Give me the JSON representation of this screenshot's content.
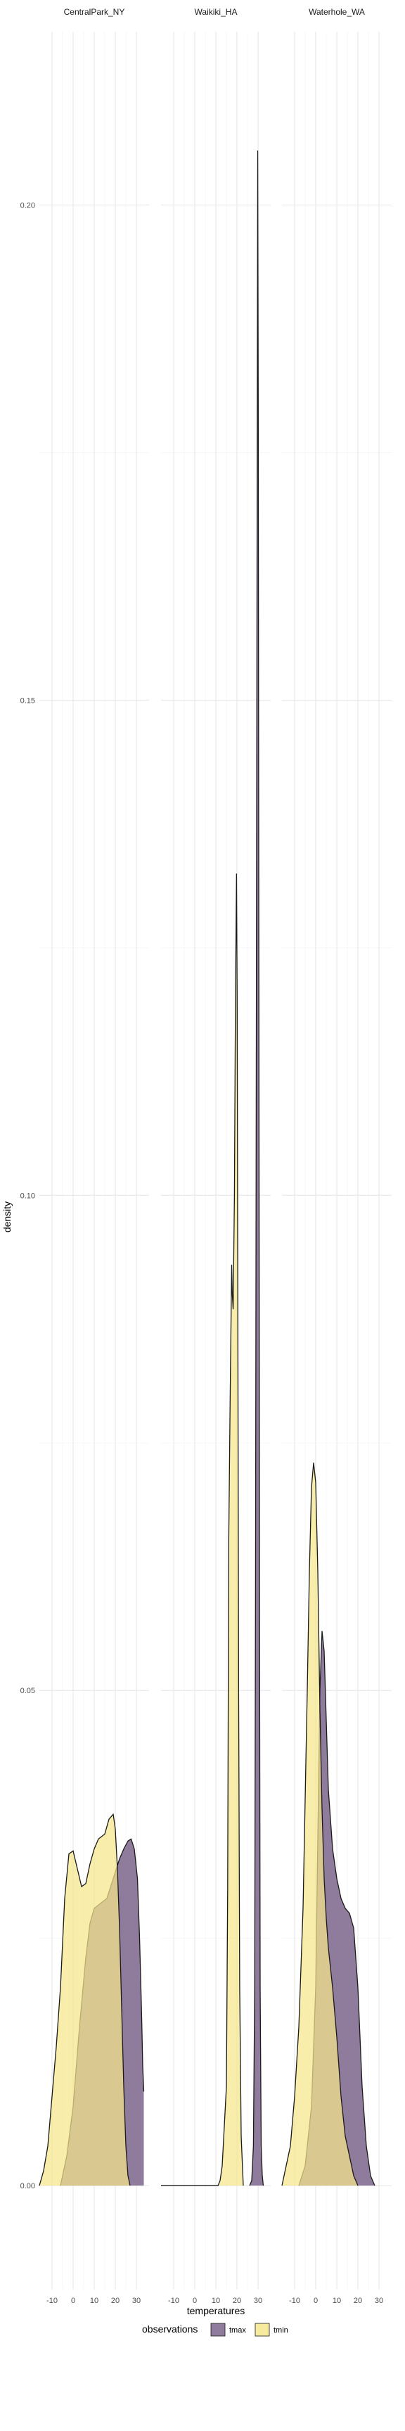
{
  "chart_data": {
    "type": "area",
    "subtype": "density-facets",
    "xlabel": "temperatures",
    "ylabel": "density",
    "xlim": [
      -16,
      36
    ],
    "ylim": [
      -0.0105,
      0.2175
    ],
    "x_ticks": [
      -10,
      0,
      10,
      20,
      30
    ],
    "y_ticks": [
      0.0,
      0.05,
      0.1,
      0.15,
      0.2
    ],
    "y_tick_labels": [
      "0.00",
      "0.05",
      "0.10",
      "0.15",
      "0.20"
    ],
    "grid": true,
    "legend": {
      "title": "observations",
      "position": "bottom",
      "entries": [
        {
          "name": "tmax",
          "color": "#8f7b9b"
        },
        {
          "name": "tmin",
          "color": "#f5e68b"
        }
      ]
    },
    "colors": {
      "tmax": "#8f7b9b",
      "tmin": "#f5e68b",
      "overlap": "#c2aa4d",
      "outline": "#1a1a1a"
    },
    "facets": [
      {
        "name": "CentralPark_NY",
        "series": [
          {
            "name": "tmax",
            "points": [
              [
                -6,
                0.0
              ],
              [
                -3,
                0.003
              ],
              [
                0,
                0.008
              ],
              [
                3,
                0.016
              ],
              [
                6,
                0.023
              ],
              [
                8,
                0.0265
              ],
              [
                10,
                0.028
              ],
              [
                13,
                0.0285
              ],
              [
                16,
                0.029
              ],
              [
                19,
                0.031
              ],
              [
                22,
                0.033
              ],
              [
                24,
                0.034
              ],
              [
                26,
                0.0348
              ],
              [
                27.5,
                0.035
              ],
              [
                29,
                0.034
              ],
              [
                30.5,
                0.031
              ],
              [
                31.5,
                0.025
              ],
              [
                32.5,
                0.017
              ],
              [
                33,
                0.012
              ],
              [
                33.5,
                0.0095
              ]
            ]
          },
          {
            "name": "tmin",
            "points": [
              [
                -16,
                0.0
              ],
              [
                -14,
                0.0015
              ],
              [
                -12,
                0.004
              ],
              [
                -10,
                0.009
              ],
              [
                -8,
                0.014
              ],
              [
                -6,
                0.02
              ],
              [
                -4,
                0.029
              ],
              [
                -2,
                0.0335
              ],
              [
                0,
                0.0338
              ],
              [
                2,
                0.032
              ],
              [
                4,
                0.0302
              ],
              [
                6,
                0.0305
              ],
              [
                8,
                0.0325
              ],
              [
                10,
                0.034
              ],
              [
                12,
                0.035
              ],
              [
                15,
                0.0355
              ],
              [
                17,
                0.037
              ],
              [
                19,
                0.0375
              ],
              [
                20,
                0.036
              ],
              [
                21,
                0.032
              ],
              [
                22,
                0.026
              ],
              [
                23,
                0.018
              ],
              [
                24,
                0.01
              ],
              [
                25,
                0.004
              ],
              [
                26,
                0.001
              ],
              [
                27,
                0.0
              ]
            ]
          }
        ]
      },
      {
        "name": "Waikiki_HA",
        "series": [
          {
            "name": "tmax",
            "points": [
              [
                26,
                0.0
              ],
              [
                27,
                0.0005
              ],
              [
                27.8,
                0.004
              ],
              [
                28.4,
                0.02
              ],
              [
                28.8,
                0.06
              ],
              [
                29.2,
                0.12
              ],
              [
                29.6,
                0.175
              ],
              [
                29.85,
                0.2055
              ],
              [
                30.1,
                0.18
              ],
              [
                30.4,
                0.12
              ],
              [
                30.7,
                0.06
              ],
              [
                31,
                0.02
              ],
              [
                31.5,
                0.004
              ],
              [
                32,
                0.001
              ],
              [
                32.5,
                0.0
              ]
            ]
          },
          {
            "name": "tmin",
            "points": [
              [
                -16,
                0.0
              ],
              [
                11,
                0.0
              ],
              [
                12,
                0.0005
              ],
              [
                13,
                0.002
              ],
              [
                14,
                0.006
              ],
              [
                15,
                0.01
              ],
              [
                15.6,
                0.03
              ],
              [
                16.1,
                0.065
              ],
              [
                16.8,
                0.08
              ],
              [
                17.5,
                0.093
              ],
              [
                17.8,
                0.09
              ],
              [
                18.2,
                0.0885
              ],
              [
                18.8,
                0.1
              ],
              [
                19.3,
                0.12
              ],
              [
                19.8,
                0.1325
              ],
              [
                20.1,
                0.12
              ],
              [
                20.4,
                0.09
              ],
              [
                20.8,
                0.05
              ],
              [
                21.3,
                0.02
              ],
              [
                22,
                0.005
              ],
              [
                23,
                0.0
              ]
            ]
          }
        ]
      },
      {
        "name": "Waterhole_WA",
        "series": [
          {
            "name": "tmax",
            "points": [
              [
                -8,
                0.0
              ],
              [
                -5,
                0.002
              ],
              [
                -2,
                0.008
              ],
              [
                0,
                0.02
              ],
              [
                1,
                0.035
              ],
              [
                2,
                0.05
              ],
              [
                3,
                0.056
              ],
              [
                4,
                0.054
              ],
              [
                5,
                0.047
              ],
              [
                6,
                0.04
              ],
              [
                8,
                0.034
              ],
              [
                10,
                0.031
              ],
              [
                12,
                0.029
              ],
              [
                14,
                0.028
              ],
              [
                16,
                0.0275
              ],
              [
                18,
                0.026
              ],
              [
                20,
                0.02
              ],
              [
                22,
                0.01
              ],
              [
                24,
                0.004
              ],
              [
                26,
                0.001
              ],
              [
                28,
                0.0
              ]
            ]
          },
          {
            "name": "tmin",
            "points": [
              [
                -16,
                0.0
              ],
              [
                -14,
                0.002
              ],
              [
                -12,
                0.004
              ],
              [
                -10,
                0.009
              ],
              [
                -8,
                0.016
              ],
              [
                -6,
                0.028
              ],
              [
                -4,
                0.05
              ],
              [
                -3,
                0.062
              ],
              [
                -2,
                0.0705
              ],
              [
                -1,
                0.073
              ],
              [
                0,
                0.071
              ],
              [
                1,
                0.062
              ],
              [
                2,
                0.048
              ],
              [
                3,
                0.038
              ],
              [
                4,
                0.031
              ],
              [
                5,
                0.027
              ],
              [
                6,
                0.024
              ],
              [
                7,
                0.022
              ],
              [
                8,
                0.02
              ],
              [
                10,
                0.015
              ],
              [
                12,
                0.009
              ],
              [
                14,
                0.005
              ],
              [
                16,
                0.003
              ],
              [
                18,
                0.001
              ],
              [
                20,
                0.0
              ]
            ]
          }
        ]
      }
    ]
  }
}
